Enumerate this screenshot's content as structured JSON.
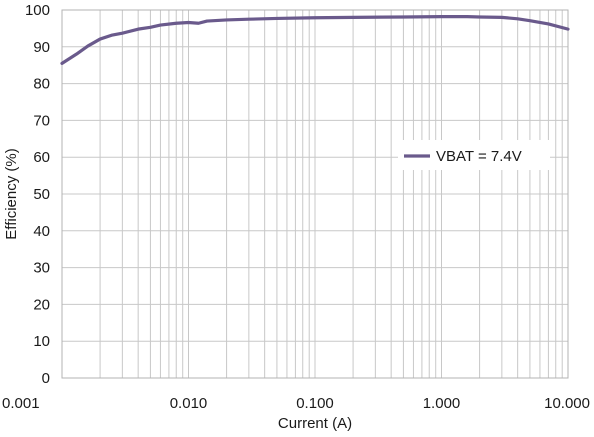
{
  "colors": {
    "series": "#6a5a8c",
    "grid": "#c8c8c8",
    "frame": "#b3b3b3",
    "background": "#ffffff",
    "text": "#1a1a1a"
  },
  "chart_data": {
    "type": "line",
    "title": "",
    "xlabel": "Current (A)",
    "ylabel": "Efficiency (%)",
    "x_scale": "log",
    "xlim": [
      0.001,
      10
    ],
    "ylim": [
      0,
      100
    ],
    "grid": true,
    "legend_placement": "right",
    "x_ticks": [
      0.001,
      0.01,
      0.1,
      1,
      10
    ],
    "x_tick_labels": [
      "0.001",
      "0.010",
      "0.100",
      "1.000",
      "10.000"
    ],
    "y_ticks": [
      0,
      10,
      20,
      30,
      40,
      50,
      60,
      70,
      80,
      90,
      100
    ],
    "y_tick_labels": [
      "0",
      "10",
      "20",
      "30",
      "40",
      "50",
      "60",
      "70",
      "80",
      "90",
      "100"
    ],
    "series": [
      {
        "name": "VBAT = 7.4V",
        "x": [
          0.001,
          0.0013,
          0.0016,
          0.002,
          0.0025,
          0.003,
          0.004,
          0.005,
          0.006,
          0.008,
          0.01,
          0.012,
          0.014,
          0.02,
          0.03,
          0.05,
          0.1,
          0.2,
          0.5,
          1,
          1.6,
          2,
          3,
          4,
          5,
          7,
          10
        ],
        "values": [
          85.5,
          88,
          90.2,
          92.1,
          93.2,
          93.7,
          94.8,
          95.3,
          95.9,
          96.4,
          96.6,
          96.4,
          97,
          97.3,
          97.5,
          97.7,
          97.9,
          98,
          98.1,
          98.2,
          98.2,
          98.1,
          98,
          97.6,
          97.1,
          96.2,
          94.8
        ]
      }
    ]
  }
}
